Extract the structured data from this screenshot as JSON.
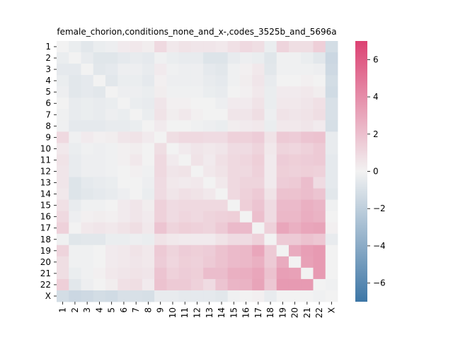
{
  "chart_data": {
    "type": "heatmap",
    "title": "female_chorion,conditions_none_and_x-,codes_3525b_and_5696a",
    "xlabel": "",
    "ylabel": "",
    "labels": [
      "1",
      "2",
      "3",
      "4",
      "5",
      "6",
      "7",
      "8",
      "9",
      "10",
      "11",
      "12",
      "13",
      "14",
      "15",
      "16",
      "17",
      "18",
      "19",
      "20",
      "21",
      "22",
      "X"
    ],
    "vmin": -7,
    "vmax": 7,
    "colorbar_ticks": [
      -6,
      -4,
      -2,
      0,
      2,
      4,
      6
    ],
    "colormap": {
      "low": "#3d76a6",
      "mid": "#f2f2f2",
      "high": "#dc4172"
    },
    "values": [
      [
        0.0,
        -0.3,
        -0.6,
        -0.3,
        -0.2,
        0.3,
        0.4,
        0.2,
        1.0,
        0.4,
        0.6,
        0.5,
        0.5,
        0.4,
        0.7,
        1.0,
        0.8,
        -0.3,
        1.2,
        0.8,
        0.8,
        1.4,
        -1.2
      ],
      [
        -0.3,
        0.0,
        -0.4,
        -0.7,
        -0.7,
        -0.5,
        -0.4,
        -0.5,
        -0.1,
        -0.3,
        -0.4,
        -0.4,
        -0.8,
        -0.8,
        -0.4,
        -0.2,
        -0.3,
        -0.7,
        -0.1,
        -0.1,
        -0.3,
        -0.6,
        -1.5
      ],
      [
        -0.5,
        -0.5,
        0.0,
        -0.6,
        -0.5,
        -0.2,
        -0.2,
        -0.4,
        0.3,
        -0.1,
        -0.2,
        -0.2,
        -0.5,
        -0.6,
        -0.1,
        0.1,
        0.4,
        -0.6,
        -0.1,
        -0.1,
        -0.1,
        -0.2,
        -1.4
      ],
      [
        -0.3,
        -0.6,
        -0.5,
        0.0,
        -0.6,
        -0.3,
        -0.3,
        -0.5,
        0.1,
        -0.2,
        -0.2,
        -0.2,
        -0.4,
        -0.5,
        -0.1,
        0.2,
        0.5,
        -0.4,
        0.0,
        0.0,
        0.1,
        0.0,
        -1.2
      ],
      [
        -0.2,
        -0.6,
        -0.5,
        -0.6,
        0.0,
        -0.2,
        -0.2,
        -0.3,
        0.2,
        -0.1,
        -0.1,
        -0.1,
        -0.3,
        -0.4,
        0.0,
        0.1,
        0.4,
        -0.3,
        0.3,
        0.3,
        0.4,
        0.2,
        -1.3
      ],
      [
        0.0,
        -0.4,
        -0.3,
        -0.4,
        -0.3,
        0.0,
        -0.3,
        -0.4,
        0.5,
        0.1,
        0.1,
        0.0,
        0.0,
        -0.2,
        0.3,
        0.3,
        0.6,
        -0.3,
        0.4,
        0.4,
        0.5,
        0.7,
        -1.0
      ],
      [
        -0.1,
        -0.4,
        -0.3,
        -0.4,
        -0.2,
        -0.3,
        0.0,
        -0.3,
        0.6,
        0.2,
        0.4,
        0.1,
        0.0,
        0.0,
        0.5,
        0.5,
        0.8,
        -0.2,
        0.6,
        0.5,
        0.6,
        0.8,
        -1.0
      ],
      [
        -0.1,
        -0.5,
        -0.5,
        -0.5,
        -0.4,
        -0.4,
        -0.3,
        0.0,
        0.3,
        0.0,
        0.0,
        -0.1,
        -0.2,
        -0.3,
        0.2,
        0.3,
        0.4,
        -0.3,
        0.4,
        0.4,
        0.5,
        0.3,
        -1.1
      ],
      [
        1.0,
        -0.1,
        0.3,
        0.1,
        0.2,
        0.5,
        0.6,
        0.3,
        0.0,
        0.8,
        1.0,
        1.0,
        0.9,
        0.9,
        1.3,
        1.3,
        1.5,
        0.6,
        1.6,
        1.5,
        1.8,
        1.9,
        -0.4
      ],
      [
        0.4,
        -0.3,
        -0.1,
        -0.2,
        -0.1,
        0.1,
        0.2,
        0.0,
        0.8,
        0.0,
        0.3,
        0.5,
        0.4,
        0.5,
        0.9,
        0.9,
        1.2,
        0.4,
        1.2,
        1.1,
        1.3,
        1.6,
        -0.4
      ],
      [
        0.6,
        -0.4,
        -0.2,
        -0.2,
        -0.1,
        0.1,
        0.4,
        0.0,
        1.0,
        0.3,
        0.0,
        0.6,
        0.3,
        0.7,
        1.0,
        1.1,
        1.4,
        0.3,
        1.5,
        1.4,
        1.5,
        1.6,
        -0.5
      ],
      [
        0.5,
        -0.4,
        -0.2,
        -0.2,
        -0.1,
        0.0,
        0.1,
        -0.1,
        1.0,
        0.5,
        0.6,
        0.0,
        0.4,
        0.6,
        1.0,
        1.0,
        1.3,
        0.3,
        1.4,
        1.3,
        1.4,
        1.3,
        -0.5
      ],
      [
        0.5,
        -0.8,
        -0.5,
        -0.4,
        -0.3,
        0.0,
        0.0,
        -0.2,
        0.9,
        0.4,
        0.3,
        0.4,
        0.0,
        0.4,
        1.0,
        1.2,
        1.2,
        0.3,
        1.5,
        1.6,
        2.1,
        0.9,
        -0.5
      ],
      [
        0.4,
        -0.8,
        -0.6,
        -0.5,
        -0.4,
        -0.2,
        0.0,
        -0.3,
        0.9,
        0.5,
        0.7,
        0.6,
        0.4,
        0.0,
        1.0,
        1.3,
        1.6,
        0.6,
        1.9,
        1.9,
        2.1,
        1.8,
        -0.6
      ],
      [
        0.7,
        -0.4,
        -0.1,
        -0.1,
        0.0,
        0.3,
        0.5,
        0.2,
        1.3,
        0.9,
        1.0,
        1.0,
        1.0,
        1.0,
        0.0,
        1.4,
        1.8,
        0.9,
        2.2,
        2.2,
        2.6,
        2.4,
        -0.1
      ],
      [
        1.0,
        -0.2,
        0.1,
        0.2,
        0.1,
        0.3,
        0.5,
        0.3,
        1.3,
        0.9,
        1.1,
        1.0,
        1.2,
        1.3,
        1.4,
        0.0,
        2.0,
        0.9,
        2.3,
        2.3,
        2.7,
        2.5,
        0.0
      ],
      [
        1.3,
        0.0,
        0.4,
        0.5,
        0.4,
        0.6,
        0.8,
        0.4,
        1.8,
        1.2,
        1.4,
        1.3,
        1.2,
        1.6,
        2.2,
        2.2,
        0.0,
        1.3,
        3.0,
        2.6,
        3.0,
        3.1,
        0.1
      ],
      [
        -0.1,
        -0.7,
        -0.6,
        -0.6,
        -0.3,
        -0.3,
        -0.2,
        -0.3,
        0.6,
        0.4,
        0.3,
        0.3,
        0.3,
        0.6,
        0.9,
        0.9,
        1.3,
        0.0,
        1.6,
        1.6,
        1.9,
        1.7,
        -0.4
      ],
      [
        1.2,
        -0.1,
        -0.1,
        0.0,
        0.3,
        0.4,
        0.6,
        0.4,
        1.6,
        1.2,
        1.5,
        1.4,
        1.5,
        1.9,
        2.2,
        2.3,
        3.0,
        1.6,
        0.0,
        2.8,
        3.3,
        3.5,
        0.0
      ],
      [
        0.8,
        -0.1,
        -0.1,
        0.0,
        0.3,
        0.4,
        0.5,
        0.4,
        1.5,
        1.1,
        1.4,
        1.3,
        1.6,
        1.9,
        2.2,
        2.3,
        2.6,
        1.6,
        2.8,
        0.0,
        3.2,
        3.5,
        0.0
      ],
      [
        0.8,
        -0.3,
        -0.1,
        0.1,
        0.4,
        0.5,
        0.6,
        0.5,
        1.8,
        1.3,
        1.5,
        1.4,
        2.1,
        2.1,
        2.6,
        2.7,
        3.0,
        1.9,
        3.3,
        3.2,
        0.0,
        3.5,
        0.0
      ],
      [
        1.4,
        -0.6,
        -0.2,
        0.0,
        0.2,
        0.7,
        0.8,
        0.3,
        1.9,
        1.6,
        1.6,
        1.3,
        0.9,
        1.8,
        2.4,
        2.5,
        3.1,
        1.7,
        3.5,
        3.5,
        3.5,
        0.0,
        -0.1
      ],
      [
        -1.2,
        -1.5,
        -1.4,
        -1.2,
        -1.3,
        -1.0,
        -1.0,
        -1.1,
        -0.4,
        -0.4,
        -0.5,
        -0.5,
        -0.5,
        -0.6,
        -0.1,
        0.0,
        0.1,
        -0.4,
        0.0,
        0.0,
        0.0,
        -0.1,
        0.0
      ]
    ]
  }
}
